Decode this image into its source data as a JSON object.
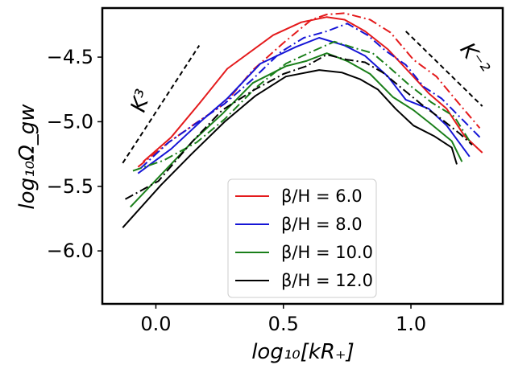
{
  "chart_data": {
    "type": "line",
    "title": "",
    "xlabel": "log₁₀[kR₊]",
    "ylabel": "log₁₀Ω_gw",
    "xlim": [
      -0.21,
      1.36
    ],
    "ylim": [
      -6.41,
      -4.12
    ],
    "xticks": [
      0.0,
      0.5,
      1.0
    ],
    "xtick_labels": [
      "0.0",
      "0.5",
      "1.0"
    ],
    "yticks": [
      -6.0,
      -5.5,
      -5.0,
      -4.5
    ],
    "ytick_labels": [
      "−6.0",
      "−5.5",
      "−5.0",
      "−4.5"
    ],
    "legend_position": "lower-center",
    "legend": [
      {
        "label": "β/H = 6.0",
        "color": "#e41a1c"
      },
      {
        "label": "β/H = 8.0",
        "color": "#1515d6"
      },
      {
        "label": "β/H = 10.0",
        "color": "#1a7f1a"
      },
      {
        "label": "β/H = 12.0",
        "color": "#000000"
      }
    ],
    "series": [
      {
        "name": "β/H = 6.0",
        "style": "solid",
        "color": "#e41a1c",
        "x": [
          -0.05,
          0.06,
          0.17,
          0.28,
          0.46,
          0.57,
          0.67,
          0.74,
          0.82,
          0.91,
          1.0,
          1.07,
          1.14,
          1.21,
          1.28
        ],
        "y": [
          -5.31,
          -5.12,
          -4.86,
          -4.59,
          -4.33,
          -4.23,
          -4.19,
          -4.21,
          -4.3,
          -4.44,
          -4.63,
          -4.78,
          -4.9,
          -5.11,
          -5.24
        ]
      },
      {
        "name": "β/H = 6.0 (alt)",
        "style": "dashdot",
        "color": "#e41a1c",
        "x": [
          -0.07,
          0.05,
          0.15,
          0.27,
          0.38,
          0.5,
          0.61,
          0.67,
          0.74,
          0.84,
          0.92,
          1.01,
          1.1,
          1.18,
          1.27
        ],
        "y": [
          -5.35,
          -5.16,
          -5.02,
          -4.86,
          -4.6,
          -4.39,
          -4.21,
          -4.17,
          -4.16,
          -4.21,
          -4.31,
          -4.52,
          -4.65,
          -4.84,
          -5.05
        ]
      },
      {
        "name": "β/H = 8.0",
        "style": "solid",
        "color": "#1515d6",
        "x": [
          -0.07,
          0.06,
          0.18,
          0.28,
          0.41,
          0.55,
          0.64,
          0.74,
          0.82,
          0.91,
          0.98,
          1.07,
          1.14,
          1.23
        ],
        "y": [
          -5.4,
          -5.21,
          -4.99,
          -4.82,
          -4.55,
          -4.42,
          -4.35,
          -4.41,
          -4.49,
          -4.65,
          -4.83,
          -4.9,
          -5.03,
          -5.27
        ]
      },
      {
        "name": "β/H = 8.0 (alt)",
        "style": "dashdot",
        "color": "#1515d6",
        "x": [
          -0.06,
          0.05,
          0.16,
          0.27,
          0.38,
          0.49,
          0.58,
          0.67,
          0.75,
          0.83,
          0.9,
          0.98,
          1.05,
          1.12,
          1.2,
          1.27
        ],
        "y": [
          -5.36,
          -5.16,
          -5.01,
          -4.86,
          -4.67,
          -4.46,
          -4.35,
          -4.3,
          -4.24,
          -4.33,
          -4.45,
          -4.56,
          -4.73,
          -4.82,
          -4.98,
          -5.12
        ]
      },
      {
        "name": "β/H = 10.0",
        "style": "solid",
        "color": "#1a7f1a",
        "x": [
          -0.1,
          0.03,
          0.15,
          0.26,
          0.38,
          0.51,
          0.59,
          0.67,
          0.75,
          0.84,
          0.93,
          1.01,
          1.08,
          1.16,
          1.2
        ],
        "y": [
          -5.66,
          -5.39,
          -5.14,
          -4.94,
          -4.7,
          -4.57,
          -4.53,
          -4.47,
          -4.53,
          -4.63,
          -4.81,
          -4.91,
          -5.02,
          -5.15,
          -5.31
        ]
      },
      {
        "name": "β/H = 10.0 (alt)",
        "style": "dashdot",
        "color": "#1a7f1a",
        "x": [
          -0.09,
          0.03,
          0.16,
          0.27,
          0.39,
          0.51,
          0.62,
          0.7,
          0.78,
          0.85,
          0.91,
          0.99,
          1.08,
          1.17,
          1.23
        ],
        "y": [
          -5.38,
          -5.3,
          -5.16,
          -4.98,
          -4.74,
          -4.55,
          -4.45,
          -4.38,
          -4.43,
          -4.47,
          -4.57,
          -4.71,
          -4.85,
          -4.96,
          -5.15
        ]
      },
      {
        "name": "β/H = 12.0",
        "style": "solid",
        "color": "#000000",
        "x": [
          -0.13,
          0.02,
          0.14,
          0.27,
          0.39,
          0.51,
          0.64,
          0.73,
          0.8,
          0.87,
          0.94,
          1.01,
          1.09,
          1.16,
          1.18
        ],
        "y": [
          -5.82,
          -5.49,
          -5.25,
          -5.0,
          -4.8,
          -4.65,
          -4.6,
          -4.62,
          -4.67,
          -4.75,
          -4.9,
          -5.03,
          -5.11,
          -5.2,
          -5.33
        ]
      },
      {
        "name": "β/H = 12.0 (alt)",
        "style": "dashdot",
        "color": "#000000",
        "x": [
          -0.12,
          0.01,
          0.14,
          0.26,
          0.38,
          0.5,
          0.59,
          0.67,
          0.75,
          0.82,
          0.89,
          0.97,
          1.05,
          1.12,
          1.19,
          1.24
        ],
        "y": [
          -5.6,
          -5.46,
          -5.16,
          -4.91,
          -4.76,
          -4.63,
          -4.57,
          -4.48,
          -4.52,
          -4.54,
          -4.62,
          -4.75,
          -4.88,
          -4.98,
          -5.09,
          -5.18
        ]
      }
    ],
    "reference_lines": [
      {
        "label": "K³",
        "style": "dashed",
        "color": "#000000",
        "x": [
          -0.13,
          0.17
        ],
        "y": [
          -5.32,
          -4.41
        ]
      },
      {
        "label": "K⁻²",
        "style": "dashed",
        "color": "#000000",
        "x": [
          0.98,
          1.28
        ],
        "y": [
          -4.3,
          -4.88
        ]
      }
    ]
  }
}
